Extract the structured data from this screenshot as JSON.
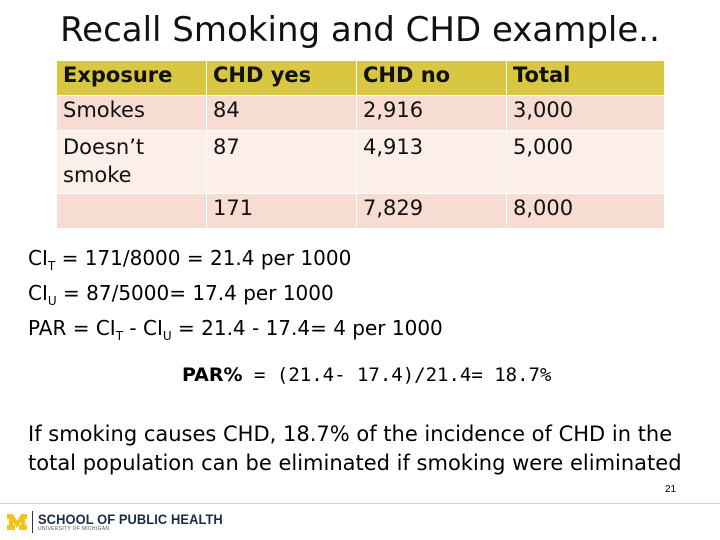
{
  "title": "Recall Smoking and CHD example..",
  "table": {
    "headers": [
      "Exposure",
      "CHD yes",
      "CHD no",
      "Total"
    ],
    "rows": [
      [
        "Smokes",
        "84",
        "2,916",
        "3,000"
      ],
      [
        "Doesn’t smoke",
        "87",
        "4,913",
        "5,000"
      ],
      [
        "",
        "171",
        "7,829",
        "8,000"
      ]
    ],
    "colors": {
      "header": "#d9c641",
      "row_dark": "#f7dcd2",
      "row_light": "#fceee9"
    }
  },
  "formulas": {
    "line1": {
      "ci": "CI",
      "sub": "T",
      "rest": " = 171/8000 = 21.4 per 1000"
    },
    "line2": {
      "ci": "CI",
      "sub": "U",
      "rest": " = 87/5000= 17.4 per 1000"
    },
    "line3": {
      "prefix": "PAR = CI",
      "sub1": "T",
      "mid": " - CI",
      "sub2": "U",
      "rest": " = 21.4 - 17.4= 4 per 1000"
    }
  },
  "par_percent": {
    "label": "PAR%",
    "text": " = (21.4- 17.4)/21.4= 18.7%"
  },
  "conclusion": "If smoking causes CHD, 18.7% of the incidence of CHD in the total population can be eliminated if smoking were eliminated",
  "page_number": "21",
  "footer": {
    "logo_line1": "SCHOOL OF PUBLIC HEALTH",
    "logo_line2": "UNIVERSITY OF MICHIGAN",
    "logo_icon": "block-m-icon",
    "brand_color": "#1b2b48",
    "maize": "#f2c318"
  }
}
